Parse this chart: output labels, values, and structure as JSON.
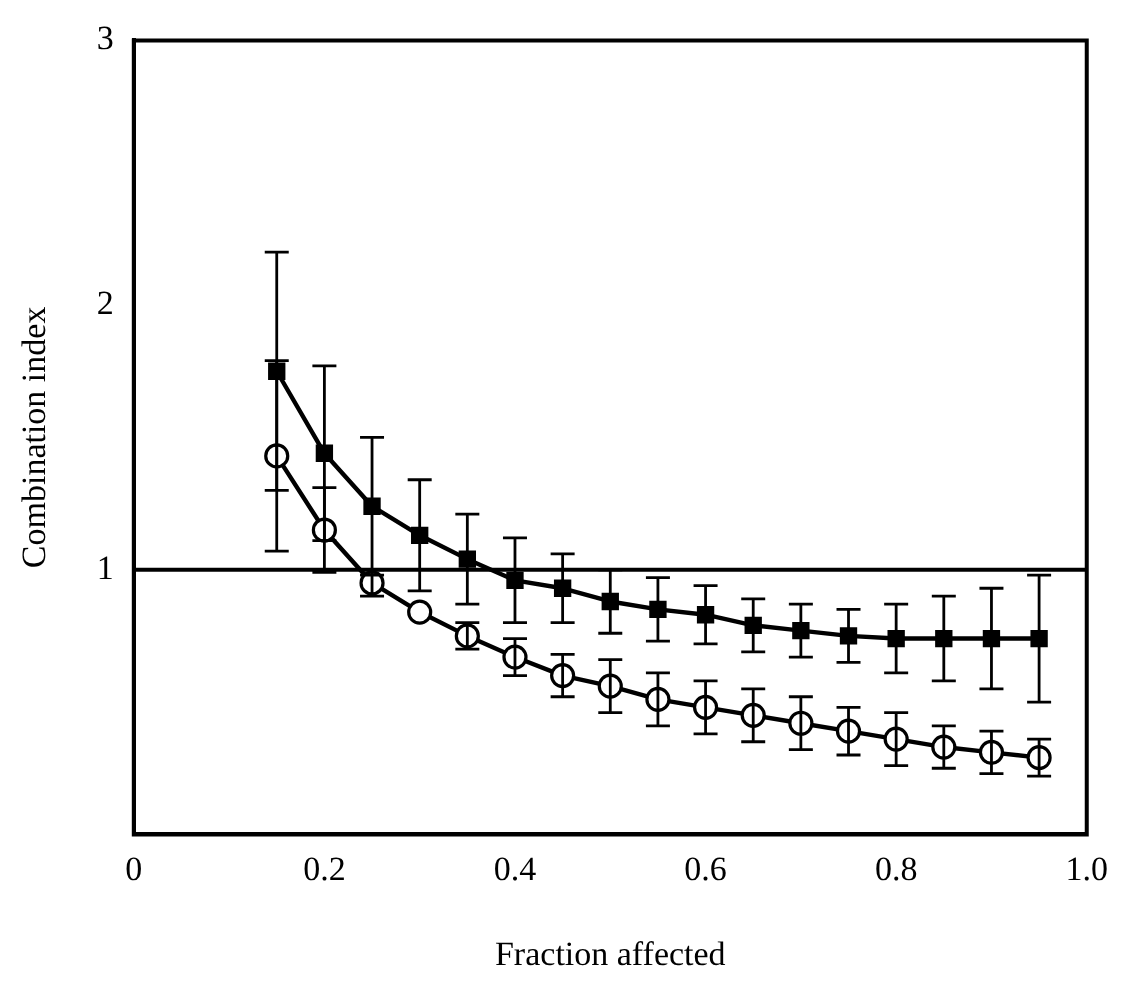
{
  "chart_data": {
    "type": "line",
    "xlabel": "Fraction affected",
    "ylabel": "Combination index",
    "xlim": [
      0,
      1
    ],
    "xticks": [
      0,
      0.2,
      0.4,
      0.6,
      0.8,
      {
        "value": 1,
        "label": "1.0"
      }
    ],
    "ylim": [
      0,
      3
    ],
    "yticks": [
      1,
      2,
      3
    ],
    "x": [
      0.15,
      0.2,
      0.25,
      0.3,
      0.35,
      0.4,
      0.45,
      0.5,
      0.55,
      0.6,
      0.65,
      0.7,
      0.75,
      0.8,
      0.85,
      0.9,
      0.95
    ],
    "series": [
      {
        "color": "#000000",
        "marker": "square",
        "values": [
          1.75,
          1.44,
          1.24,
          1.13,
          1.04,
          0.96,
          0.93,
          0.88,
          0.85,
          0.83,
          0.79,
          0.77,
          0.75,
          0.74,
          0.74,
          0.74,
          0.74
        ],
        "errors": [
          0.45,
          0.33,
          0.26,
          0.21,
          0.17,
          0.16,
          0.13,
          0.12,
          0.12,
          0.11,
          0.1,
          0.1,
          0.1,
          0.13,
          0.16,
          0.19,
          0.24
        ]
      },
      {
        "color": "#000000",
        "marker": "circle",
        "values": [
          1.43,
          1.15,
          0.95,
          0.84,
          0.75,
          0.67,
          0.6,
          0.56,
          0.51,
          0.48,
          0.45,
          0.42,
          0.39,
          0.36,
          0.33,
          0.31,
          0.29
        ],
        "errors": [
          0.36,
          0.16,
          0.05,
          null,
          0.05,
          0.07,
          0.08,
          0.1,
          0.1,
          0.1,
          0.1,
          0.1,
          0.09,
          0.1,
          0.08,
          0.08,
          0.07
        ]
      }
    ],
    "ref_lines": [
      {
        "axis": "y",
        "value": 1
      }
    ],
    "grid": false,
    "legend": false
  }
}
